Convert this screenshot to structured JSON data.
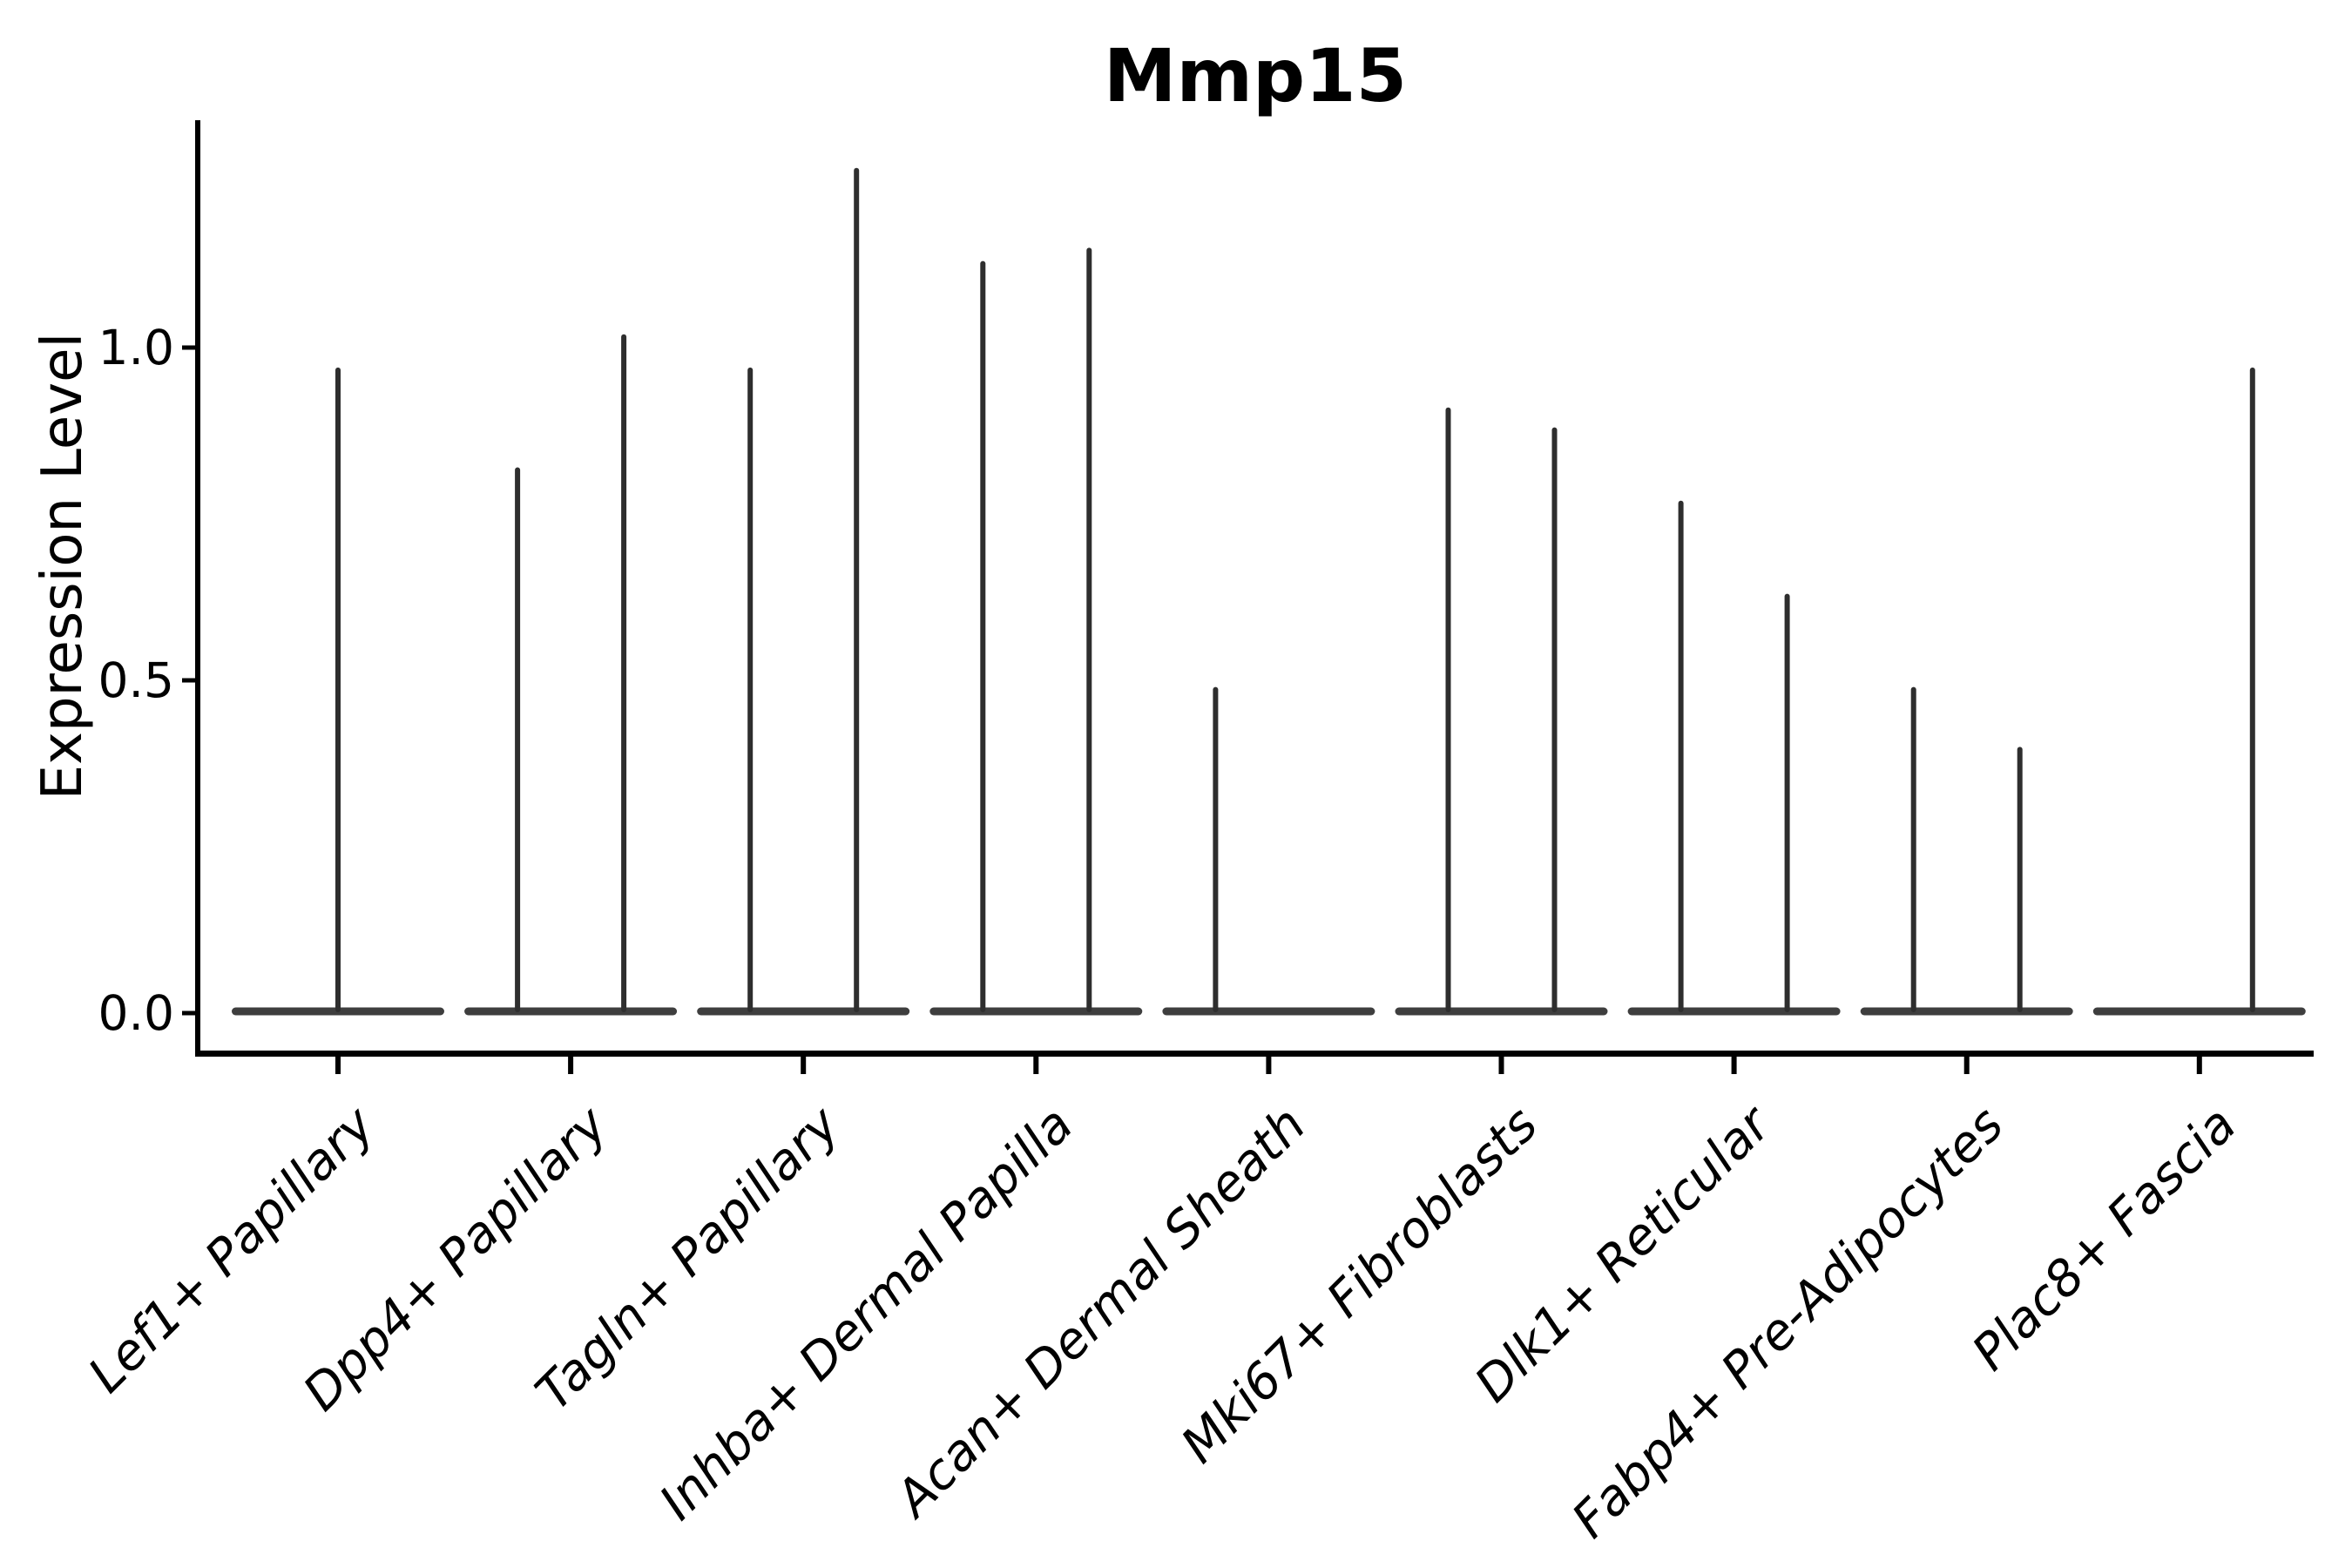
{
  "chart_data": {
    "type": "violin",
    "title": "Mmp15",
    "ylabel": "Expression Level",
    "xlabel": "",
    "ytick_labels": [
      "0.0",
      "0.5",
      "1.0"
    ],
    "ytick_values": [
      0.0,
      0.5,
      1.0
    ],
    "ylim": [
      -0.06,
      1.34
    ],
    "grid": false,
    "legend": null,
    "categories": [
      "Lef1+ Papillary",
      "Dpp4+ Papillary",
      "Tagln+ Papillary",
      "Inhba+ Dermal Papilla",
      "Acan+ Dermal Sheath",
      "Mki67+ Fibroblasts",
      "Dlk1+ Reticular",
      "Fabp4+ Pre-Adipocytes",
      "Plac8+ Fascia"
    ],
    "violins": [
      {
        "category": "Lef1+ Papillary",
        "spikes": [
          {
            "position": "center",
            "max": 0.97
          }
        ]
      },
      {
        "category": "Dpp4+ Papillary",
        "spikes": [
          {
            "position": "left",
            "max": 0.82
          },
          {
            "position": "right",
            "max": 1.02
          }
        ]
      },
      {
        "category": "Tagln+ Papillary",
        "spikes": [
          {
            "position": "left",
            "max": 0.97
          },
          {
            "position": "right",
            "max": 1.27
          }
        ]
      },
      {
        "category": "Inhba+ Dermal Papilla",
        "spikes": [
          {
            "position": "left",
            "max": 1.13
          },
          {
            "position": "right",
            "max": 1.15
          }
        ]
      },
      {
        "category": "Acan+ Dermal Sheath",
        "spikes": [
          {
            "position": "left",
            "max": 0.49
          }
        ]
      },
      {
        "category": "Mki67+ Fibroblasts",
        "spikes": [
          {
            "position": "left",
            "max": 0.91
          },
          {
            "position": "right",
            "max": 0.88
          }
        ]
      },
      {
        "category": "Dlk1+ Reticular",
        "spikes": [
          {
            "position": "left",
            "max": 0.77
          },
          {
            "position": "right",
            "max": 0.63
          }
        ]
      },
      {
        "category": "Fabp4+ Pre-Adipocytes",
        "spikes": [
          {
            "position": "left",
            "max": 0.49
          },
          {
            "position": "right",
            "max": 0.4
          }
        ]
      },
      {
        "category": "Plac8+ Fascia",
        "spikes": [
          {
            "position": "right",
            "max": 0.97
          }
        ]
      }
    ],
    "colors": {
      "violin": "#2e2e2e",
      "axis": "#000000",
      "text": "#000000",
      "background": "#ffffff"
    }
  }
}
